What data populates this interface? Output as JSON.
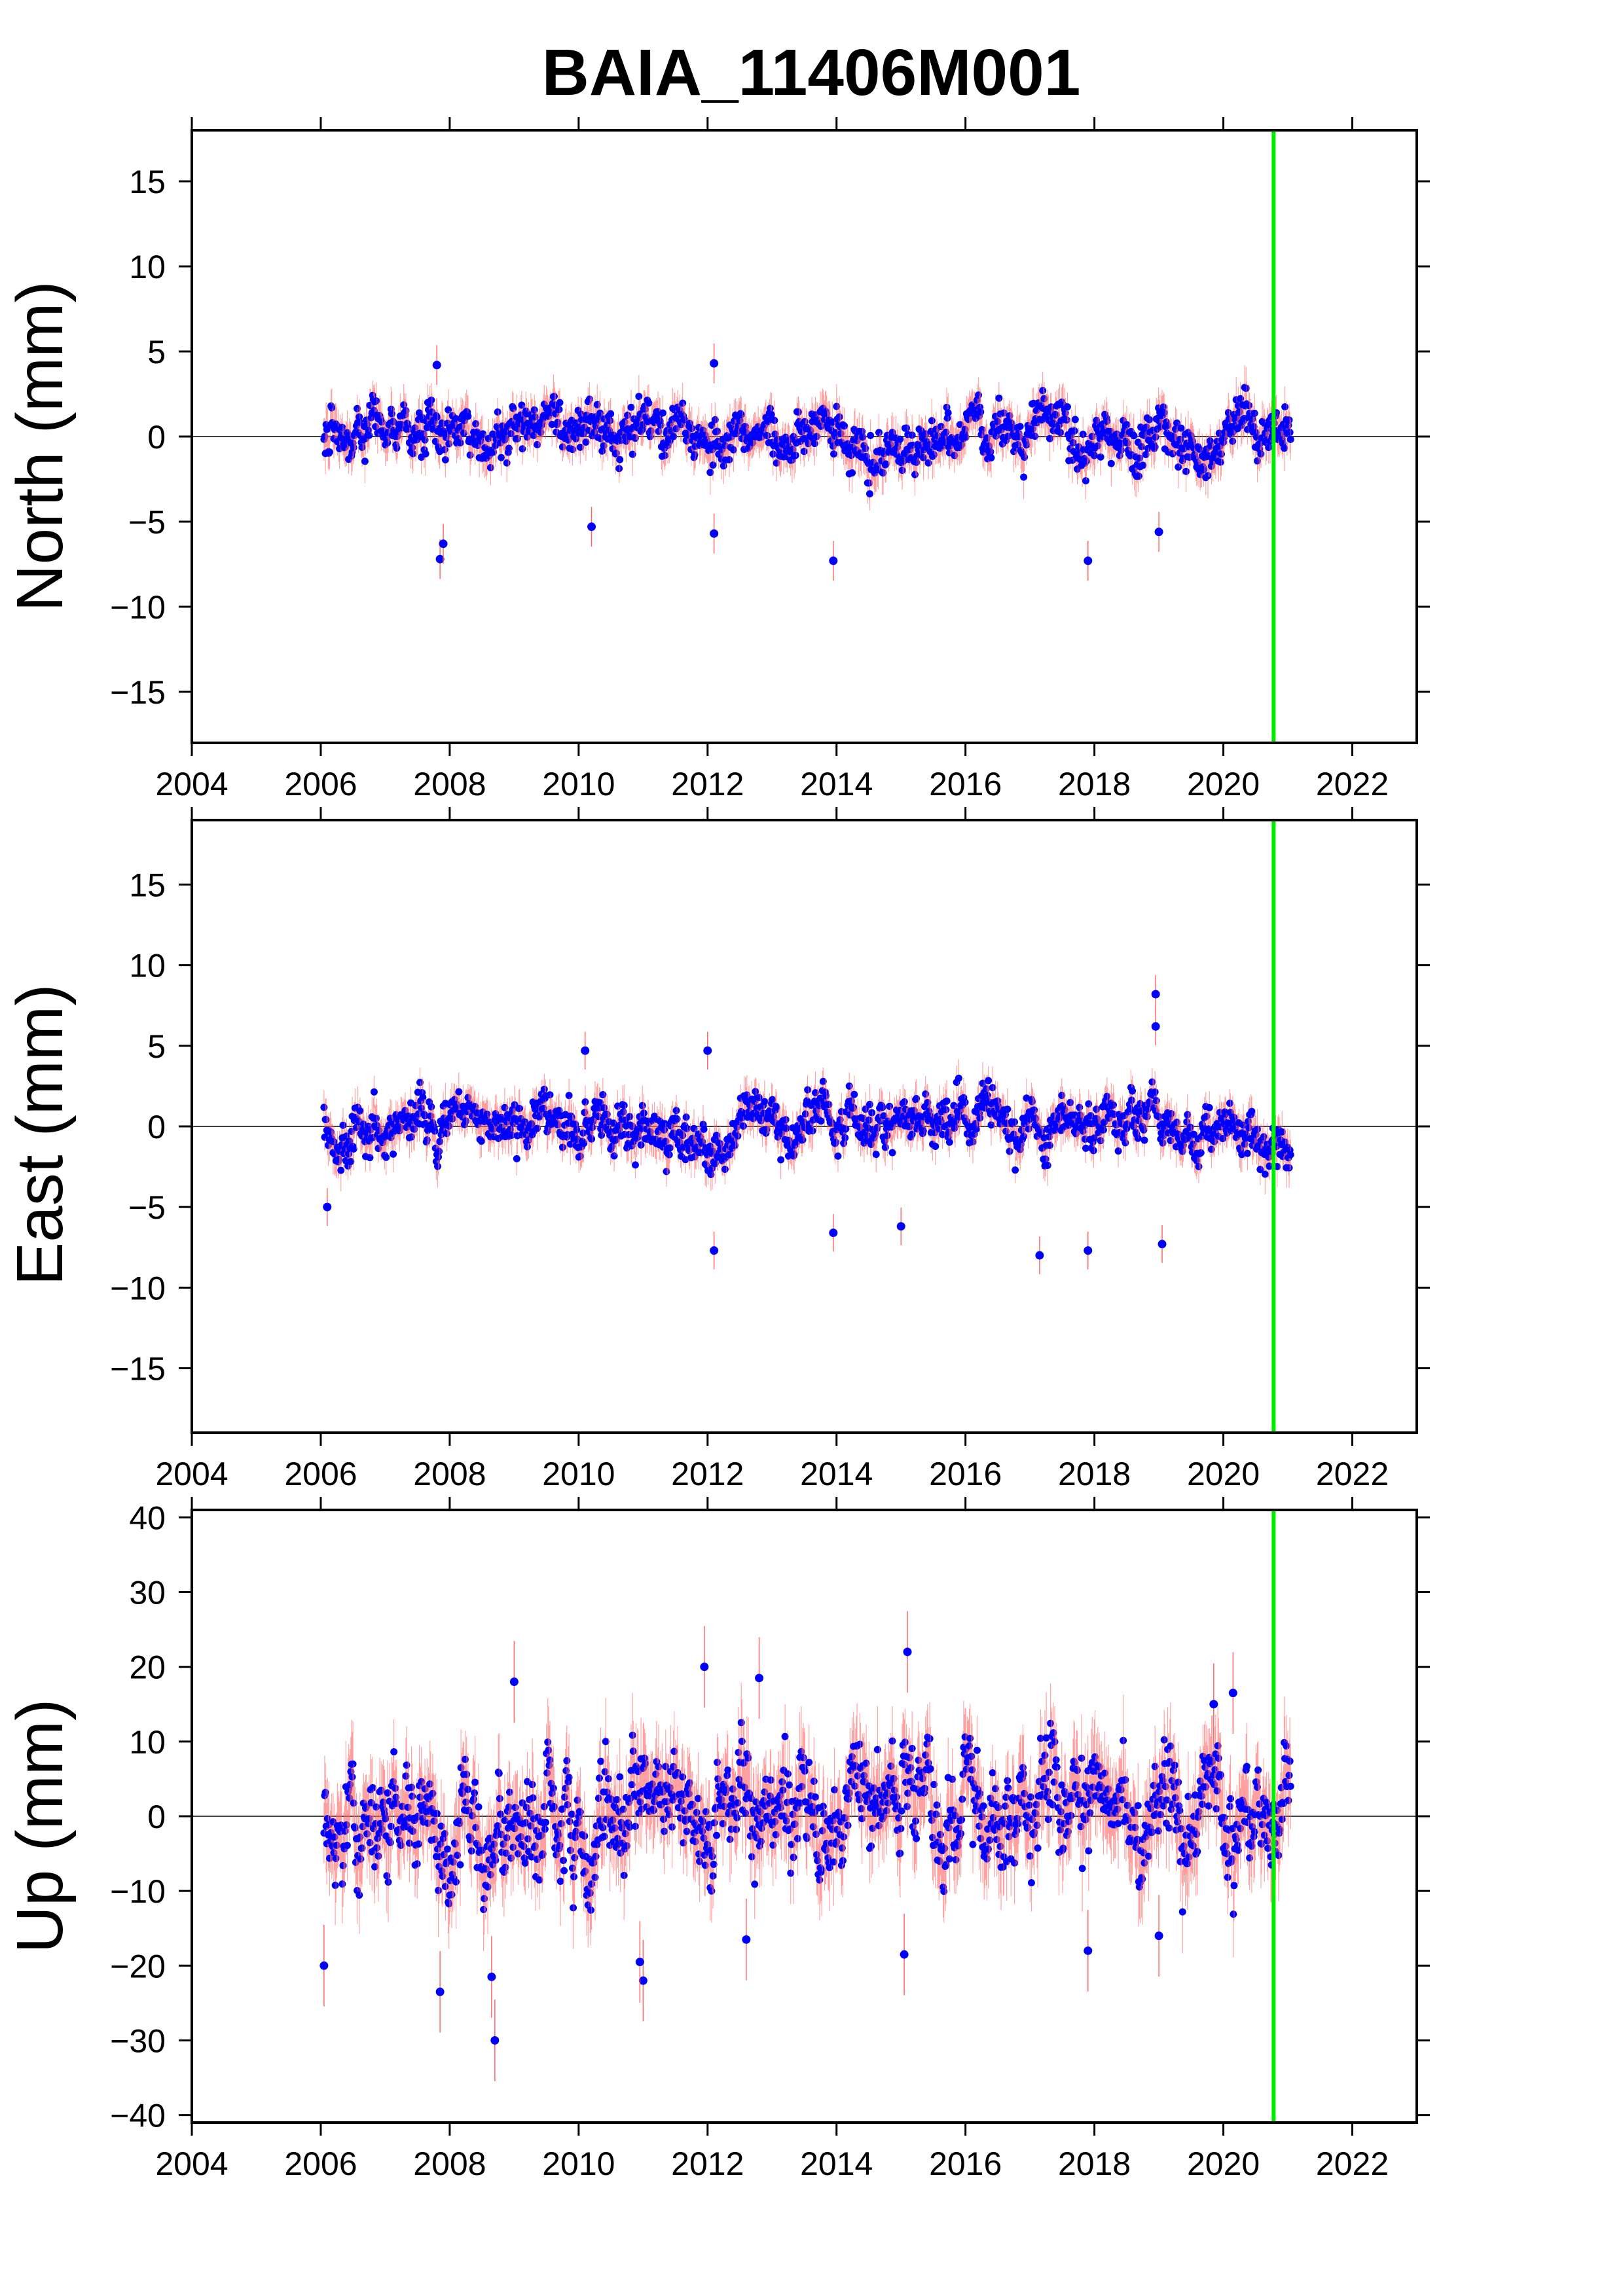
{
  "title": "BAIA_11406M001",
  "colors": {
    "points": "#0000ff",
    "error_bars": "#ff6666",
    "event_line": "#00ee00",
    "frame": "#000000",
    "zero_line": "#000000"
  },
  "chart_data": [
    {
      "type": "scatter",
      "component": "north",
      "ylabel": "North (mm)",
      "xlim": [
        2004,
        2023
      ],
      "ylim": [
        -18,
        18
      ],
      "x_ticks": [
        2004,
        2006,
        2008,
        2010,
        2012,
        2014,
        2016,
        2018,
        2020,
        2022
      ],
      "y_ticks": [
        15,
        10,
        5,
        0,
        -5,
        -10,
        -15
      ],
      "x_tick_labels": [
        "2004",
        "2006",
        "2008",
        "2010",
        "2012",
        "2014",
        "2016",
        "2018",
        "2020",
        "2022"
      ],
      "y_tick_labels": [
        "15",
        "10",
        "5",
        "0",
        "−5",
        "−10",
        "−15"
      ],
      "series": [
        {
          "data_range": [
            2006.05,
            2021.05
          ],
          "noise": 0.9,
          "outliers": [
            [
              2007.85,
              -7.2
            ],
            [
              2007.9,
              -6.3
            ],
            [
              2012.1,
              -5.7
            ],
            [
              2013.95,
              -7.3
            ],
            [
              2017.9,
              -7.3
            ],
            [
              2010.2,
              -5.3
            ],
            [
              2019.0,
              -5.6
            ],
            [
              2007.8,
              4.2
            ],
            [
              2012.1,
              4.3
            ]
          ]
        }
      ],
      "event_x": 2020.78
    },
    {
      "type": "scatter",
      "component": "east",
      "ylabel": "East (mm)",
      "xlim": [
        2004,
        2023
      ],
      "ylim": [
        -19,
        19
      ],
      "x_ticks": [
        2004,
        2006,
        2008,
        2010,
        2012,
        2014,
        2016,
        2018,
        2020,
        2022
      ],
      "y_ticks": [
        15,
        10,
        5,
        0,
        -5,
        -10,
        -15
      ],
      "x_tick_labels": [
        "2004",
        "2006",
        "2008",
        "2010",
        "2012",
        "2014",
        "2016",
        "2018",
        "2020",
        "2022"
      ],
      "y_tick_labels": [
        "15",
        "10",
        "5",
        "0",
        "−5",
        "−10",
        "−15"
      ],
      "series": [
        {
          "data_range": [
            2006.05,
            2021.05
          ],
          "noise": 0.9,
          "outliers": [
            [
              2018.95,
              8.2
            ],
            [
              2018.95,
              6.2
            ],
            [
              2012.1,
              -7.7
            ],
            [
              2013.95,
              -6.6
            ],
            [
              2015.0,
              -6.2
            ],
            [
              2017.15,
              -8.0
            ],
            [
              2017.9,
              -7.7
            ],
            [
              2019.05,
              -7.3
            ],
            [
              2006.1,
              -5.0
            ],
            [
              2010.1,
              4.7
            ],
            [
              2012.0,
              4.7
            ]
          ]
        }
      ],
      "event_x": 2020.78
    },
    {
      "type": "scatter",
      "component": "up",
      "ylabel": "Up (mm)",
      "xlim": [
        2004,
        2023
      ],
      "ylim": [
        -41,
        41
      ],
      "x_ticks": [
        2004,
        2006,
        2008,
        2010,
        2012,
        2014,
        2016,
        2018,
        2020,
        2022
      ],
      "y_ticks": [
        40,
        30,
        20,
        10,
        0,
        -10,
        -20,
        -30,
        -40
      ],
      "x_tick_labels": [
        "2004",
        "2006",
        "2008",
        "2010",
        "2012",
        "2014",
        "2016",
        "2018",
        "2020",
        "2022"
      ],
      "y_tick_labels": [
        "40",
        "30",
        "20",
        "10",
        "0",
        "−10",
        "−20",
        "−30",
        "−40"
      ],
      "series": [
        {
          "data_range": [
            2006.05,
            2021.05
          ],
          "noise": 4.2,
          "outliers": [
            [
              2008.7,
              -30.0
            ],
            [
              2007.85,
              -23.5
            ],
            [
              2008.65,
              -21.5
            ],
            [
              2006.05,
              -20.0
            ],
            [
              2011.0,
              -22.0
            ],
            [
              2009.0,
              18.0
            ],
            [
              2011.95,
              20.0
            ],
            [
              2015.1,
              22.0
            ],
            [
              2012.8,
              18.5
            ],
            [
              2019.85,
              15.0
            ],
            [
              2020.15,
              16.5
            ],
            [
              2015.05,
              -18.5
            ],
            [
              2017.9,
              -18.0
            ],
            [
              2010.95,
              -19.5
            ],
            [
              2012.6,
              -16.5
            ],
            [
              2019.0,
              -16.0
            ]
          ]
        }
      ],
      "event_x": 2020.78
    }
  ]
}
